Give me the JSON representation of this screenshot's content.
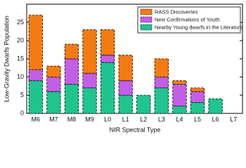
{
  "chart_data": {
    "type": "stacked_bar",
    "categories": [
      "M6",
      "M7",
      "M8",
      "M9",
      "L0",
      "L1",
      "L2",
      "L3",
      "L4",
      "L5",
      "L6",
      "L7"
    ],
    "series": [
      {
        "name": "Nearby Young dwarfs in the Literature",
        "color": "#1fc48f",
        "values": [
          9,
          6,
          8,
          7,
          14,
          5,
          5,
          7,
          2,
          3,
          4,
          0
        ]
      },
      {
        "name": "New Confirmations of Youth",
        "color": "#c25fe6",
        "values": [
          3,
          4,
          7,
          4,
          2,
          4,
          0,
          3,
          6,
          3,
          0,
          0
        ]
      },
      {
        "name": "RASS Discoveries",
        "color": "#f57a12",
        "values": [
          15,
          3,
          4,
          12,
          7,
          7,
          0,
          5,
          1,
          1,
          0,
          0
        ]
      }
    ],
    "ylabel": "Low-Gravity Dwarfs Population",
    "xlabel": "NIR Spectral Type",
    "ylim": [
      0,
      30
    ],
    "yticks": [
      0,
      5,
      10,
      15,
      20,
      25
    ],
    "legend": "upper right"
  }
}
